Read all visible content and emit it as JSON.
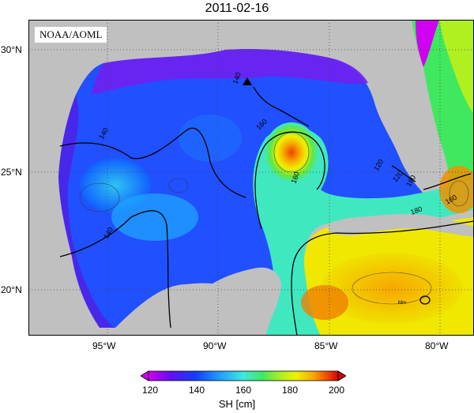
{
  "title": "2011-02-16",
  "source": "NOAA/AOML",
  "lat_labels": [
    "30°N",
    "25°N",
    "20°N"
  ],
  "lon_labels": [
    "95°W",
    "90°W",
    "85°W",
    "80°W"
  ],
  "colorbar": {
    "ticks": [
      "120",
      "140",
      "160",
      "180",
      "200"
    ],
    "title": "SH [cm]",
    "colors": [
      "#d000f0",
      "#6010f0",
      "#1040ff",
      "#20a0ff",
      "#40e8e0",
      "#40e860",
      "#b0f020",
      "#f0f000",
      "#f8a800",
      "#f04000",
      "#d00010"
    ]
  },
  "contour_labels": [
    "140",
    "140",
    "140",
    "160",
    "160",
    "160",
    "160",
    "180",
    "120",
    "120",
    "Mm"
  ],
  "colors": {
    "land": "#c0c0c0",
    "frame": "#000000",
    "grid": "#444444"
  },
  "marker": "triangle-marker"
}
